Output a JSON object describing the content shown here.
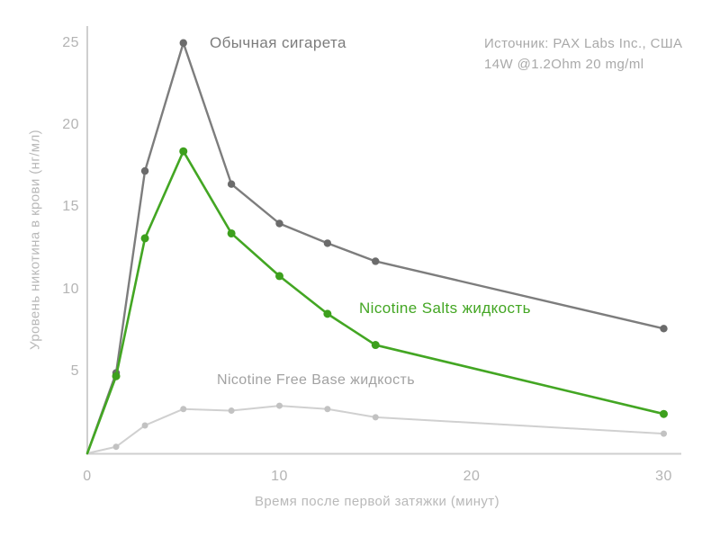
{
  "chart_data": {
    "type": "line",
    "x": [
      0,
      1.5,
      3,
      5,
      7.5,
      10,
      12.5,
      15,
      30
    ],
    "series": [
      {
        "name": "Обычная сигарета",
        "values": [
          0,
          4.9,
          17.2,
          25,
          16.4,
          14,
          12.8,
          11.7,
          7.6
        ],
        "color": "#7d7d7d",
        "dot_color": "#6b6b6b"
      },
      {
        "name": "Nicotine Salts жидкость",
        "values": [
          0,
          4.7,
          13.1,
          18.4,
          13.4,
          10.8,
          8.5,
          6.6,
          2.4
        ],
        "color": "#43a623",
        "dot_color": "#3da01d"
      },
      {
        "name": "Nicotine Free Base жидкость",
        "values": [
          0,
          0.4,
          1.7,
          2.7,
          2.6,
          2.9,
          2.7,
          2.2,
          1.2
        ],
        "color": "#d0d0d0",
        "dot_color": "#c2c2c2"
      }
    ],
    "xlabel": "Время после первой затяжки (минут)",
    "ylabel": "Уровень никотина в крови (нг/мл)",
    "xlim": [
      0,
      31
    ],
    "ylim": [
      0,
      26
    ],
    "x_ticks": [
      0,
      10,
      20,
      30
    ],
    "y_ticks": [
      5,
      10,
      15,
      20,
      25
    ],
    "grid": false,
    "legend": "inline-labels"
  },
  "annotations": {
    "source_line1": "Источник: PAX Labs Inc., США",
    "source_line2": "14W @1.2Ohm 20 mg/ml"
  },
  "colors": {
    "background": "#ffffff",
    "axis": "#cfcfcf",
    "tick_text": "#b4b4b4",
    "axis_title_text": "#b9b9b9",
    "source_text": "#a9a9a9",
    "cigarette_label_text": "#7c7c7c",
    "salts_label_text": "#43a623",
    "freebase_label_text": "#a2a2a2"
  }
}
